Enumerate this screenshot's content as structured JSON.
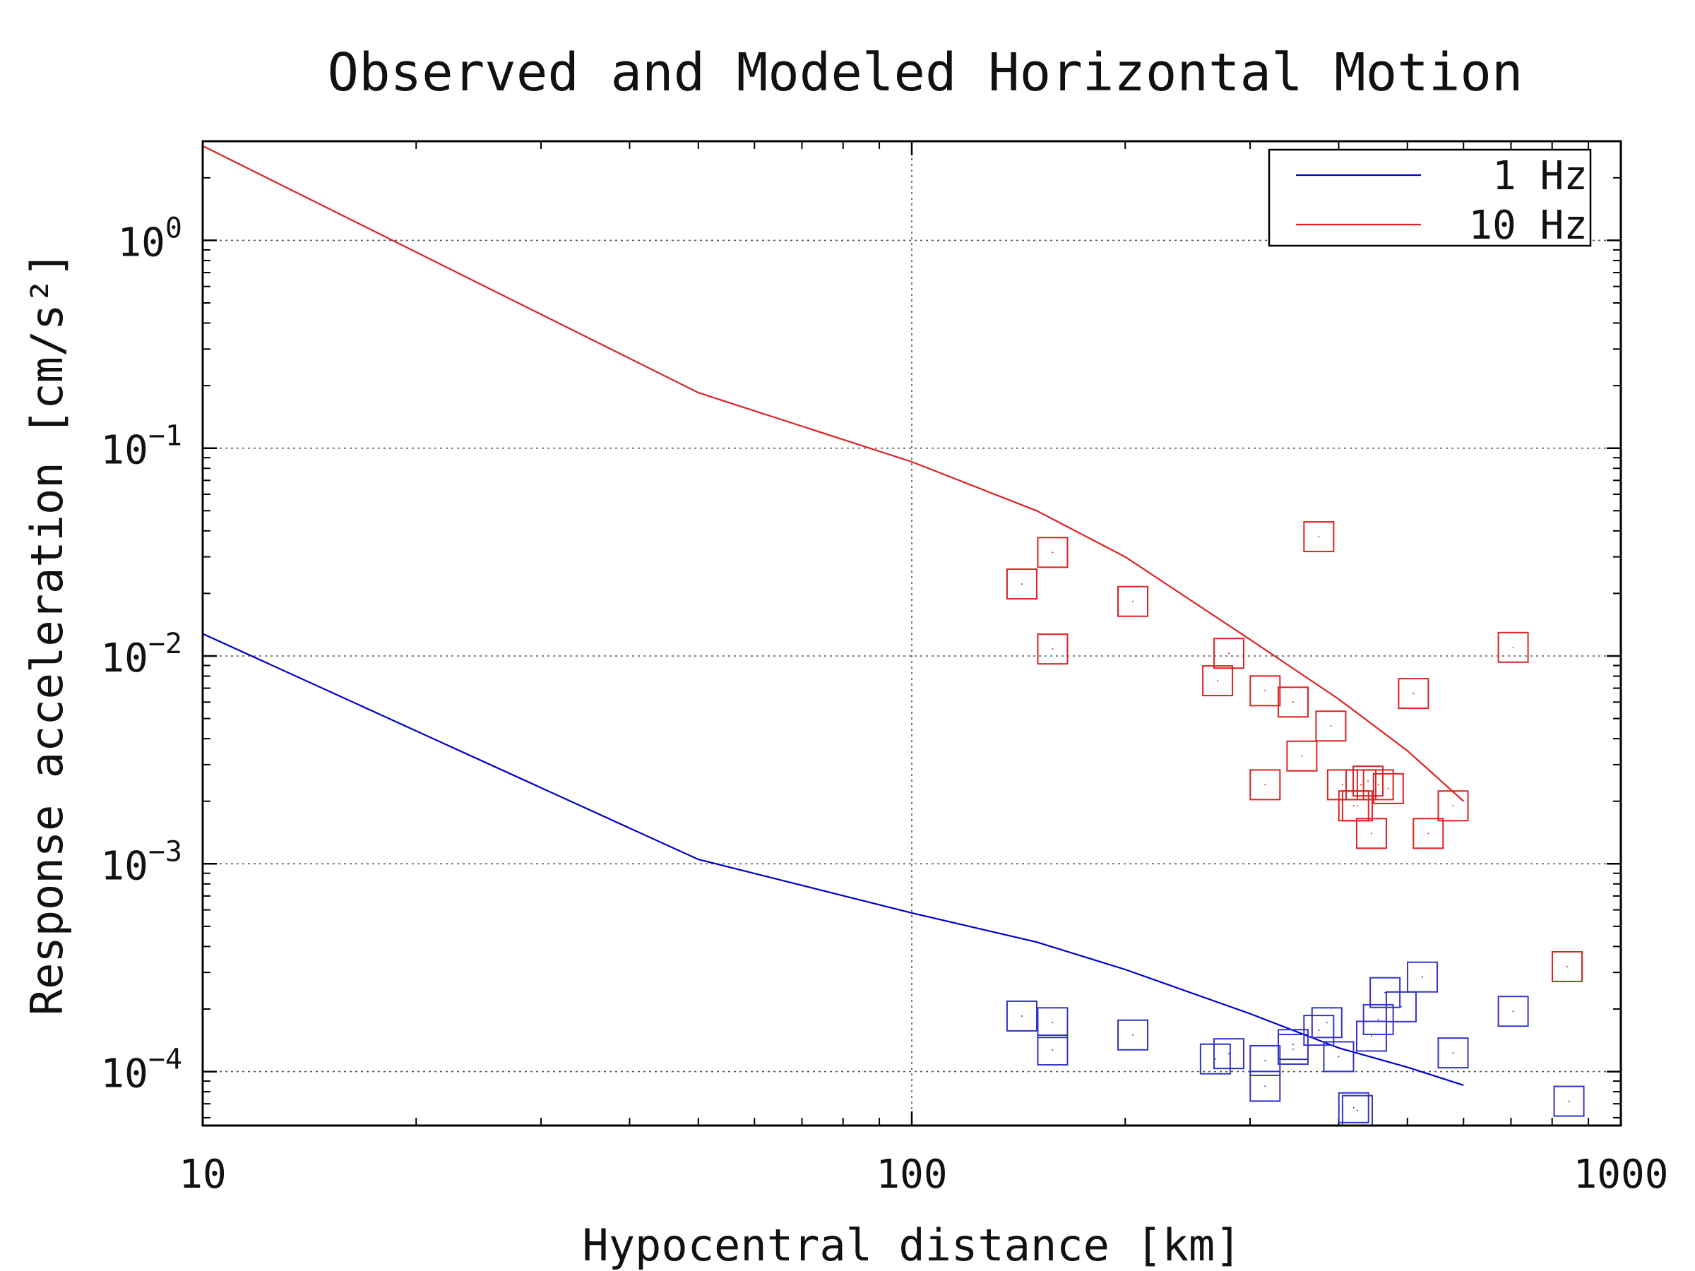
{
  "chart_data": {
    "type": "scatter",
    "title": "Observed and Modeled Horizontal Motion",
    "xlabel": "Hypocentral distance [km]",
    "ylabel": "Response acceleration [cm/s²]",
    "x_scale": "log",
    "y_scale": "log",
    "xlim": [
      10,
      1000
    ],
    "ylim": [
      5.5e-05,
      3.0
    ],
    "x_ticks": [
      {
        "value": 10,
        "label": "10"
      },
      {
        "value": 100,
        "label": "100"
      },
      {
        "value": 1000,
        "label": "1000"
      }
    ],
    "y_ticks": [
      {
        "value": 1,
        "base": "10",
        "exp": "0"
      },
      {
        "value": 0.1,
        "base": "10",
        "exp": "−1"
      },
      {
        "value": 0.01,
        "base": "10",
        "exp": "−2"
      },
      {
        "value": 0.001,
        "base": "10",
        "exp": "−3"
      },
      {
        "value": 0.0001,
        "base": "10",
        "exp": "−4"
      }
    ],
    "grid": true,
    "legend_position": "top-right",
    "series": [
      {
        "name": "1 Hz",
        "color": "#0000cc",
        "marker": "line",
        "points": [
          [
            10,
            0.0128
          ],
          [
            50,
            0.00105
          ],
          [
            100,
            0.00058
          ],
          [
            150,
            0.00042
          ],
          [
            200,
            0.00031
          ],
          [
            300,
            0.00019
          ],
          [
            400,
            0.00013
          ],
          [
            500,
            0.000105
          ],
          [
            600,
            8.6e-05
          ]
        ]
      },
      {
        "name": "10 Hz",
        "color": "#dd2222",
        "marker": "line",
        "points": [
          [
            10,
            2.85
          ],
          [
            50,
            0.185
          ],
          [
            100,
            0.086
          ],
          [
            150,
            0.05
          ],
          [
            200,
            0.03
          ],
          [
            300,
            0.012
          ],
          [
            400,
            0.0062
          ],
          [
            500,
            0.0035
          ],
          [
            600,
            0.002
          ]
        ]
      },
      {
        "name": "",
        "color": "#3333cc",
        "marker": "square",
        "points": [
          [
            143,
            0.000185
          ],
          [
            158,
            0.000172
          ],
          [
            158,
            0.000127
          ],
          [
            205,
            0.00015
          ],
          [
            268,
            0.000115
          ],
          [
            280,
            0.000122
          ],
          [
            315,
            0.000113
          ],
          [
            315,
            8.5e-05
          ],
          [
            345,
            0.000128
          ],
          [
            345,
            0.000135
          ],
          [
            375,
            0.000158
          ],
          [
            385,
            0.000172
          ],
          [
            400,
            0.000118
          ],
          [
            420,
            6.7e-05
          ],
          [
            425,
            6.5e-05
          ],
          [
            445,
            0.000148
          ],
          [
            455,
            0.000178
          ],
          [
            465,
            0.00024
          ],
          [
            490,
            0.000205
          ],
          [
            525,
            0.000285
          ],
          [
            580,
            0.000123
          ],
          [
            705,
            0.000195
          ],
          [
            845,
            7.2e-05
          ]
        ]
      },
      {
        "name": "",
        "color": "#dd2222",
        "marker": "square",
        "points": [
          [
            143,
            0.0222
          ],
          [
            158,
            0.0315
          ],
          [
            158,
            0.0108
          ],
          [
            205,
            0.0183
          ],
          [
            270,
            0.0076
          ],
          [
            280,
            0.0103
          ],
          [
            315,
            0.0068
          ],
          [
            315,
            0.0024
          ],
          [
            345,
            0.006
          ],
          [
            355,
            0.0033
          ],
          [
            375,
            0.0375
          ],
          [
            390,
            0.0046
          ],
          [
            405,
            0.0024
          ],
          [
            420,
            0.0019
          ],
          [
            425,
            0.0019
          ],
          [
            430,
            0.0024
          ],
          [
            440,
            0.0025
          ],
          [
            445,
            0.0014
          ],
          [
            455,
            0.0024
          ],
          [
            470,
            0.0023
          ],
          [
            510,
            0.0066
          ],
          [
            535,
            0.0014
          ],
          [
            580,
            0.0019
          ],
          [
            705,
            0.011
          ],
          [
            840,
            0.00032
          ]
        ]
      }
    ]
  }
}
